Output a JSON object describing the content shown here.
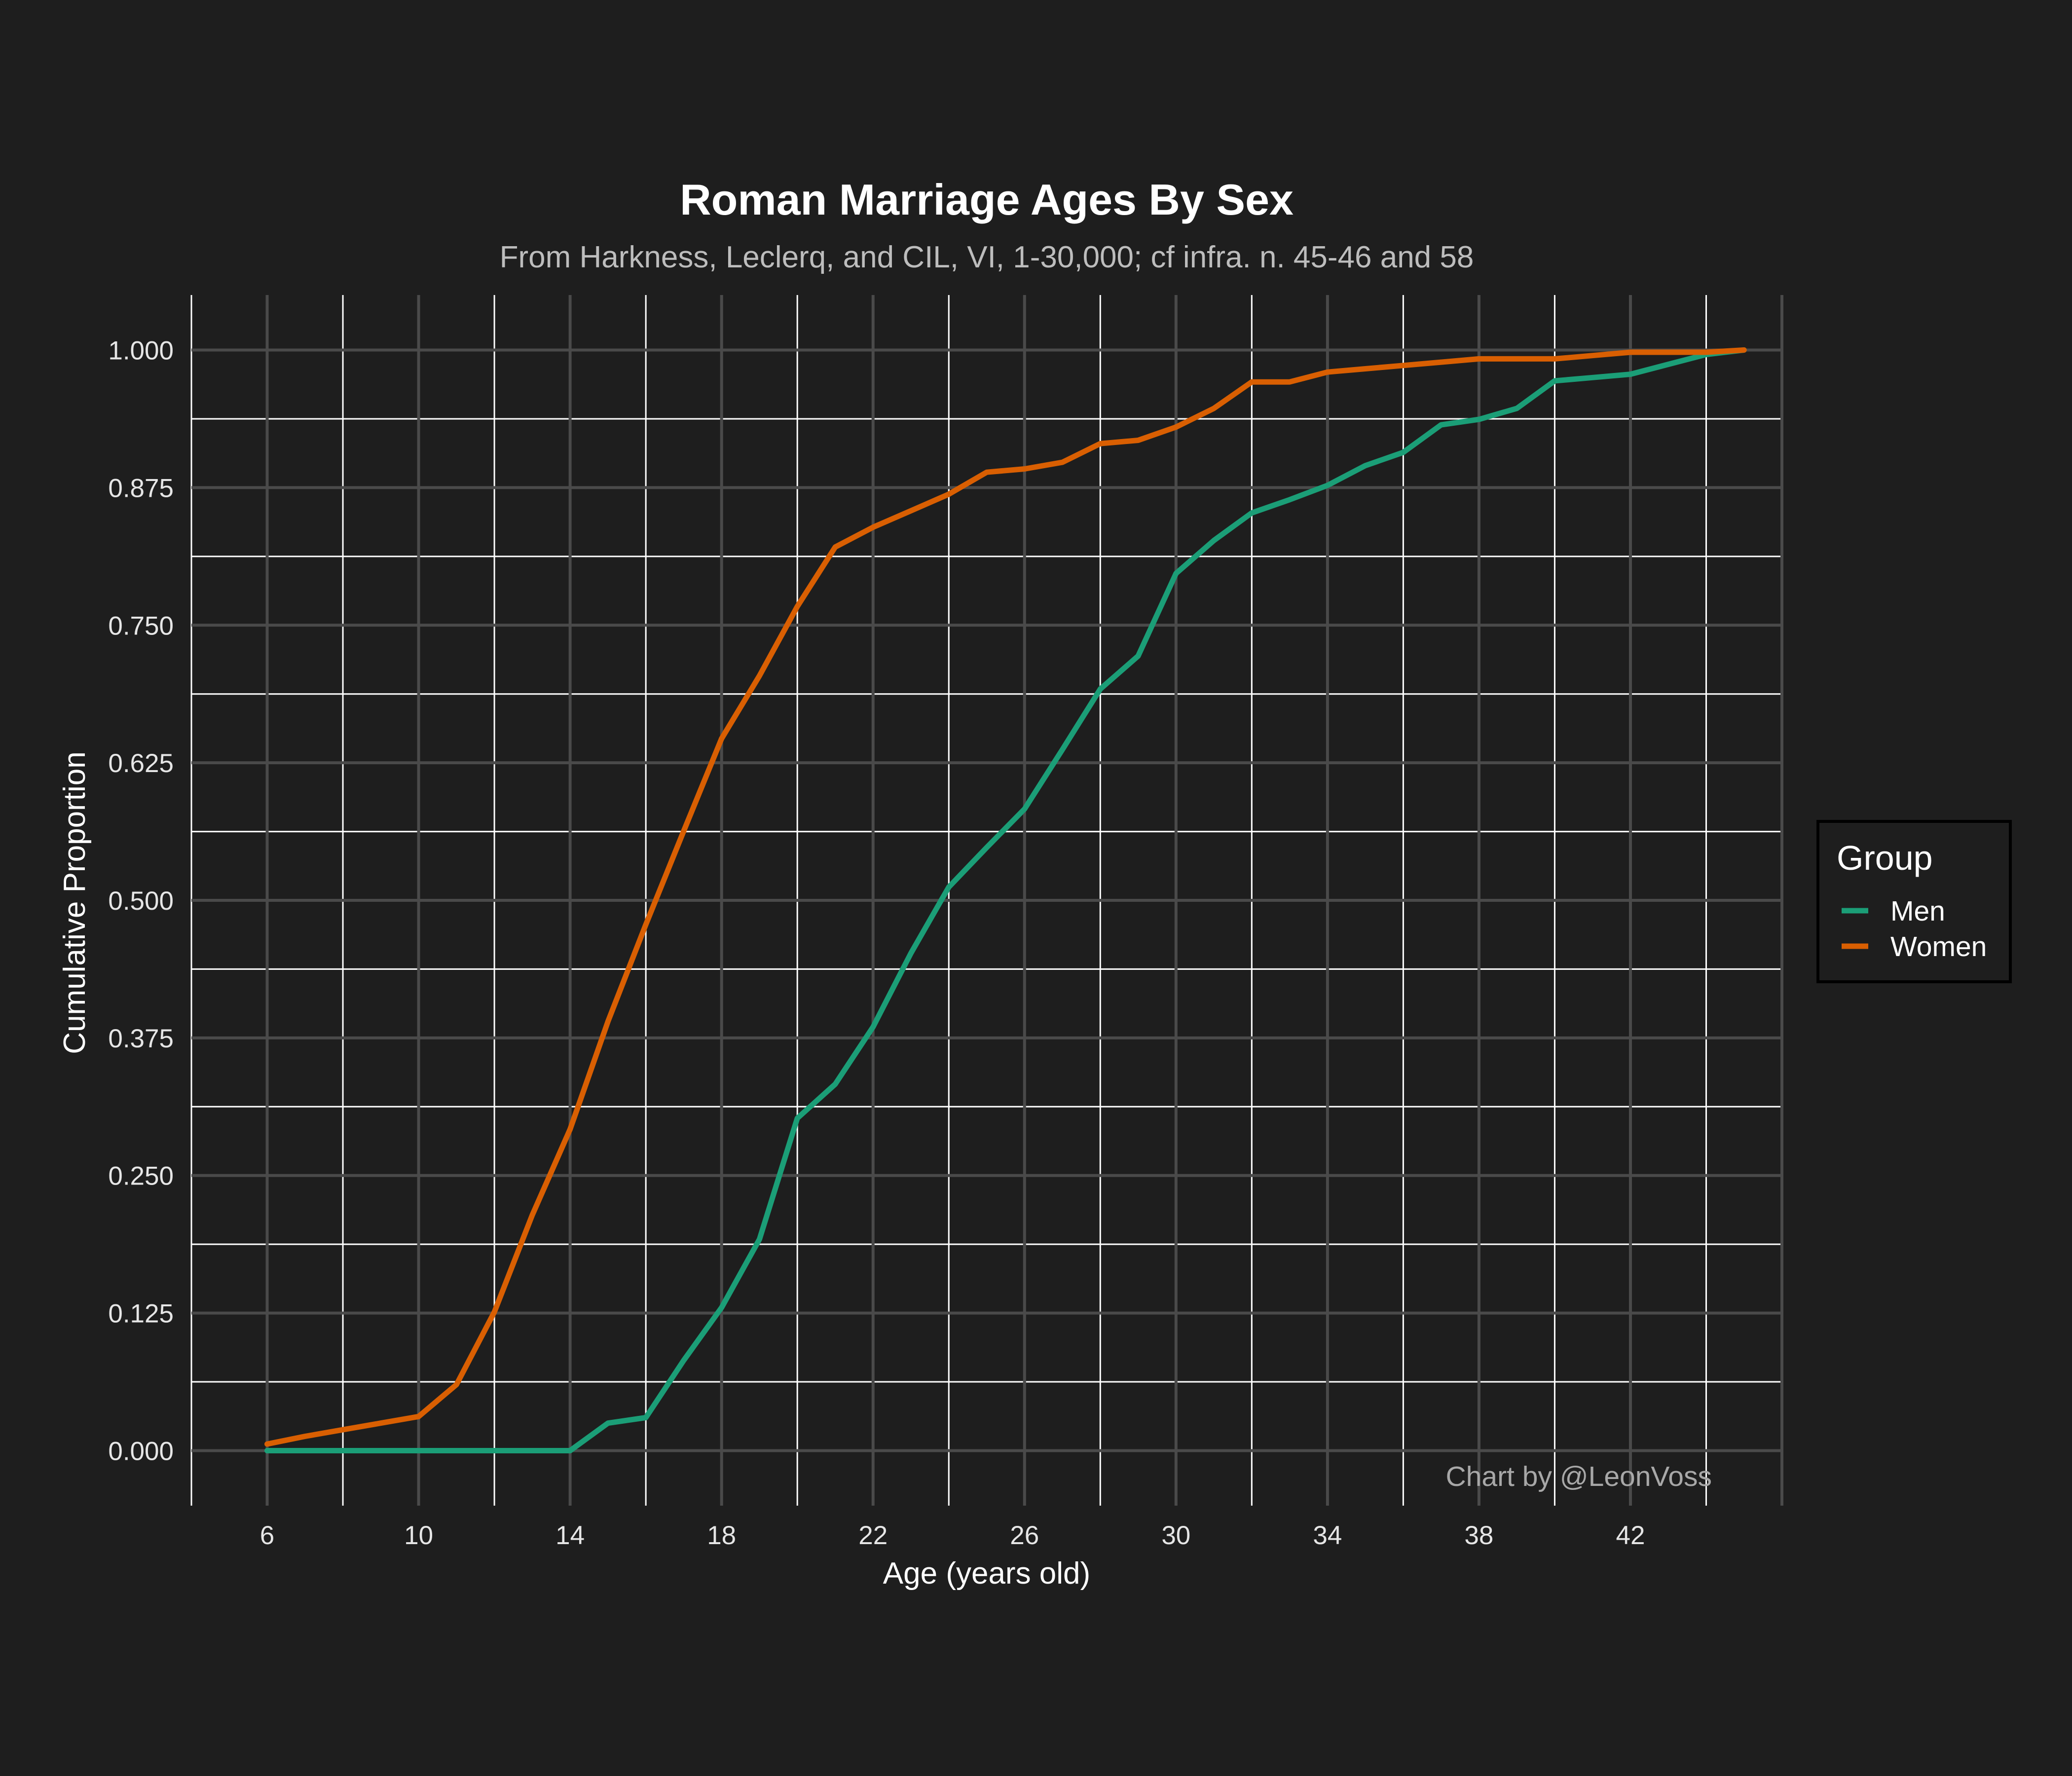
{
  "chart_data": {
    "type": "line",
    "title": "Roman Marriage Ages By Sex",
    "subtitle": "From Harkness, Leclerq, and CIL, VI, 1-30,000; cf infra. n. 45-46 and 58",
    "xlabel": "Age (years old)",
    "ylabel": "Cumulative Proportion",
    "caption": "Chart by @LeonVoss",
    "xlim": [
      4,
      46
    ],
    "ylim": [
      -0.05,
      1.05
    ],
    "x_ticks": [
      6,
      10,
      14,
      18,
      22,
      26,
      30,
      34,
      38,
      42
    ],
    "y_ticks": [
      0.0,
      0.125,
      0.25,
      0.375,
      0.5,
      0.625,
      0.75,
      0.875,
      1.0
    ],
    "y_tick_labels": [
      "0.000",
      "0.125",
      "0.250",
      "0.375",
      "0.500",
      "0.625",
      "0.750",
      "0.875",
      "1.000"
    ],
    "grid": true,
    "legend": {
      "title": "Group",
      "placement": "right"
    },
    "series": [
      {
        "name": "Men",
        "color": "#1b9e77",
        "x": [
          6,
          7,
          8,
          9,
          10,
          11,
          12,
          13,
          14,
          15,
          16,
          17,
          18,
          19,
          20,
          21,
          22,
          23,
          24,
          25,
          26,
          27,
          28,
          29,
          30,
          31,
          32,
          33,
          34,
          35,
          36,
          37,
          38,
          39,
          40,
          41,
          42,
          43,
          44,
          45
        ],
        "y": [
          0.0,
          0.0,
          0.0,
          0.0,
          0.0,
          0.0,
          0.0,
          0.0,
          0.0,
          0.025,
          0.03,
          0.082,
          0.13,
          0.192,
          0.302,
          0.333,
          0.385,
          0.452,
          0.512,
          0.548,
          0.583,
          0.637,
          0.692,
          0.722,
          0.797,
          0.827,
          0.852,
          0.864,
          0.877,
          0.895,
          0.907,
          0.932,
          0.937,
          0.947,
          0.972,
          0.975,
          0.978,
          0.987,
          0.996,
          1.0
        ]
      },
      {
        "name": "Women",
        "color": "#d95f02",
        "x": [
          6,
          7,
          8,
          9,
          10,
          11,
          12,
          13,
          14,
          15,
          16,
          17,
          18,
          19,
          20,
          21,
          22,
          23,
          24,
          25,
          26,
          27,
          28,
          29,
          30,
          31,
          32,
          33,
          34,
          35,
          36,
          37,
          38,
          39,
          40,
          41,
          42,
          43,
          44,
          45
        ],
        "y": [
          0.006,
          0.013,
          0.019,
          0.025,
          0.031,
          0.06,
          0.126,
          0.214,
          0.292,
          0.39,
          0.478,
          0.563,
          0.647,
          0.704,
          0.767,
          0.821,
          0.839,
          0.854,
          0.869,
          0.889,
          0.892,
          0.898,
          0.915,
          0.918,
          0.93,
          0.947,
          0.971,
          0.971,
          0.98,
          0.983,
          0.986,
          0.989,
          0.992,
          0.992,
          0.992,
          0.995,
          0.998,
          0.998,
          0.998,
          1.0
        ]
      }
    ]
  }
}
